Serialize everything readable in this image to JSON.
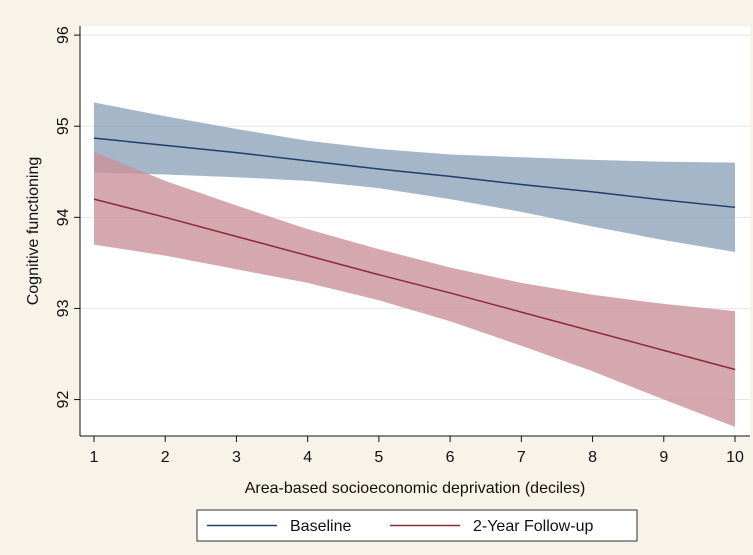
{
  "chart_data": {
    "type": "line",
    "xlabel": "Area-based socioeconomic deprivation (deciles)",
    "ylabel": "Cognitive functioning",
    "xlim": [
      1,
      10
    ],
    "ylim": [
      91.6,
      96.1
    ],
    "x_ticks": [
      1,
      2,
      3,
      4,
      5,
      6,
      7,
      8,
      9,
      10
    ],
    "y_ticks": [
      92,
      93,
      94,
      95,
      96
    ],
    "grid": true,
    "legend_position": "bottom",
    "x": [
      1,
      2,
      3,
      4,
      5,
      6,
      7,
      8,
      9,
      10
    ],
    "series": [
      {
        "name": "Baseline",
        "color": "#1f3f66",
        "band_color": "#8aa2b9",
        "values": [
          94.87,
          94.79,
          94.71,
          94.62,
          94.53,
          94.45,
          94.36,
          94.28,
          94.19,
          94.11
        ],
        "lower": [
          94.49,
          94.47,
          94.44,
          94.4,
          94.32,
          94.2,
          94.06,
          93.9,
          93.75,
          93.62
        ],
        "upper": [
          95.26,
          95.11,
          94.97,
          94.84,
          94.75,
          94.69,
          94.66,
          94.63,
          94.61,
          94.6
        ]
      },
      {
        "name": "2-Year Follow-up",
        "color": "#8b2b35",
        "band_color": "#c98f99",
        "values": [
          94.2,
          94.0,
          93.79,
          93.58,
          93.37,
          93.17,
          92.96,
          92.75,
          92.54,
          92.33
        ],
        "lower": [
          93.7,
          93.58,
          93.43,
          93.28,
          93.09,
          92.86,
          92.59,
          92.31,
          92.0,
          91.7
        ],
        "upper": [
          94.72,
          94.4,
          94.13,
          93.87,
          93.65,
          93.45,
          93.28,
          93.15,
          93.05,
          92.97
        ]
      }
    ]
  }
}
